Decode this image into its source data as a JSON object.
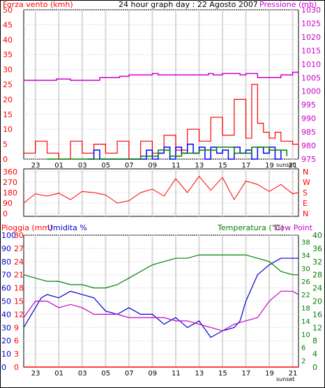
{
  "chart_data": [
    {
      "id": "wind",
      "type": "line",
      "title": "24 hour graph day : 22 Agosto 2007",
      "left_label": "Forza vento (kmh)",
      "right_label": "Pressione (mb)",
      "left_ticks": [
        "0",
        "5",
        "10",
        "15",
        "20",
        "25",
        "30",
        "35",
        "40",
        "45",
        "50"
      ],
      "left_ylim": [
        0,
        50
      ],
      "right_ticks": [
        "975",
        "980",
        "985",
        "990",
        "995",
        "1000",
        "1005",
        "1010",
        "1015",
        "1020",
        "1025",
        "1030"
      ],
      "right_ylim": [
        975,
        1030
      ],
      "x_ticks": [
        "23",
        "01",
        "03",
        "05",
        "07",
        "09",
        "11",
        "13",
        "15",
        "17",
        "19",
        "21"
      ],
      "x_range": [
        22,
        45.5
      ],
      "sunset_label": "sunset",
      "grid": true,
      "colors": {
        "wind": "#ff0000",
        "gust": "#0000ff",
        "green": "#008000",
        "pressure": "#cc00cc",
        "axis_left": "#ff0000",
        "axis_right": "#cc00cc"
      },
      "series": [
        {
          "key": "pressure",
          "x": [
            22.0,
            24.7,
            24.8,
            26.0,
            28.5,
            30.2,
            31.0,
            33.0,
            33.5,
            35.0,
            37.8,
            38.2,
            39.0,
            40.5,
            41.0,
            42.0,
            42.5,
            44.0,
            45.0,
            45.5
          ],
          "y": [
            1004,
            1004,
            1004.5,
            1004,
            1005,
            1005.5,
            1006,
            1006.5,
            1006,
            1006,
            1006.5,
            1006,
            1006.5,
            1006,
            1006.5,
            1005,
            1005,
            1006,
            1007,
            1007
          ]
        },
        {
          "key": "wind",
          "x": [
            22,
            23,
            24,
            25,
            26,
            27,
            28,
            29,
            30,
            31,
            32,
            33,
            34,
            35,
            36,
            37,
            38,
            39,
            40,
            41,
            41.5,
            42,
            42.5,
            43,
            43.5,
            44,
            45,
            45.5
          ],
          "y": [
            2,
            6,
            2,
            0,
            6,
            2,
            5,
            2,
            6,
            0,
            6,
            2,
            8,
            3,
            10,
            6,
            14,
            8,
            20,
            7,
            25,
            12,
            9,
            7,
            9,
            6,
            5,
            6
          ]
        },
        {
          "key": "gust",
          "x": [
            27.5,
            28,
            28.5,
            32,
            32.5,
            33,
            33.5,
            34,
            34.5,
            35,
            35.5,
            36,
            36.5,
            37,
            37.5,
            38,
            38.5,
            39,
            39.5,
            40,
            40.5,
            41,
            41.5,
            42,
            42.5,
            43,
            43.5,
            44
          ],
          "y": [
            0,
            3,
            0,
            0,
            3,
            0,
            2,
            4,
            0,
            4,
            2,
            5,
            2,
            4,
            0,
            4,
            2,
            3,
            0,
            4,
            2,
            3,
            0,
            4,
            2,
            4,
            0,
            3
          ]
        },
        {
          "key": "green",
          "x": [
            24,
            30,
            32,
            33.5,
            34.5,
            35.5,
            37,
            38.5,
            40,
            41.5,
            43,
            44.5
          ],
          "y": [
            0,
            0,
            1,
            3,
            1,
            2,
            3,
            4,
            2,
            4,
            3,
            1
          ]
        }
      ]
    },
    {
      "id": "direction",
      "type": "line",
      "left_ticks": [
        "0",
        "90",
        "180",
        "270",
        "360"
      ],
      "left_ylim": [
        0,
        360
      ],
      "right_ticks": [
        "N",
        "E",
        "S",
        "W",
        "N"
      ],
      "x_ticks": [
        "23",
        "01",
        "03",
        "05",
        "07",
        "09",
        "11",
        "13",
        "15",
        "17",
        "19",
        "21"
      ],
      "series": [
        {
          "key": "direction",
          "x": [
            22,
            23,
            24,
            25,
            26,
            27,
            28,
            29,
            30,
            31,
            32,
            33,
            34,
            35,
            36,
            37,
            38,
            39,
            40,
            41,
            42,
            43,
            44,
            45,
            45.5
          ],
          "y": [
            90,
            170,
            150,
            175,
            120,
            190,
            180,
            160,
            90,
            110,
            180,
            210,
            150,
            300,
            180,
            320,
            200,
            310,
            120,
            280,
            250,
            190,
            250,
            170,
            180
          ]
        }
      ]
    },
    {
      "id": "temp",
      "type": "line",
      "labels": [
        "Pioggia (mm)",
        "Umidita %",
        "Temperatura (°C)",
        "Dew Point"
      ],
      "rain_ticks": [
        "0",
        "3",
        "6",
        "9",
        "12",
        "15",
        "18",
        "21",
        "24",
        "27",
        "30"
      ],
      "humidity_ticks": [
        "0",
        "10",
        "20",
        "30",
        "40",
        "50",
        "60",
        "70",
        "80",
        "90",
        "100"
      ],
      "temp_ticks": [
        "0",
        "4",
        "8",
        "12",
        "16",
        "20",
        "24",
        "28",
        "32",
        "36",
        "40"
      ],
      "temp_ticks_right": [
        "0",
        "2",
        "4",
        "6",
        "8",
        "10",
        "12",
        "14",
        "16",
        "18",
        "20",
        "22",
        "24",
        "26",
        "28",
        "30",
        "32",
        "34",
        "36",
        "38",
        "40"
      ],
      "x_ticks": [
        "23",
        "01",
        "03",
        "05",
        "07",
        "09",
        "11",
        "13",
        "15",
        "17",
        "19",
        "21"
      ],
      "sunset_label": "sunset",
      "series": [
        {
          "key": "humidity",
          "x": [
            22,
            23,
            23.5,
            24,
            25,
            26,
            27,
            28,
            29,
            30,
            31,
            32,
            33,
            34,
            35,
            36,
            37,
            38,
            39,
            40,
            40.5,
            41,
            42,
            43,
            44,
            45,
            45.5
          ],
          "y": [
            12,
            18,
            21,
            22,
            21,
            23,
            22,
            21,
            17,
            16,
            18,
            16,
            16,
            13,
            15,
            12,
            14,
            9,
            11,
            12,
            14,
            20,
            28,
            31,
            33,
            33,
            33
          ]
        },
        {
          "key": "temperature",
          "x": [
            22,
            23,
            24,
            25,
            26,
            27,
            28,
            29,
            30,
            31,
            32,
            33,
            34,
            35,
            36,
            37,
            38,
            39,
            40,
            41,
            42,
            43,
            44,
            45,
            45.5
          ],
          "y": [
            28,
            27,
            26,
            26,
            25,
            25,
            24,
            24,
            25,
            27,
            29,
            31,
            32,
            33,
            33,
            34,
            34,
            34,
            34,
            34,
            33,
            32,
            29,
            28,
            28
          ]
        },
        {
          "key": "dewpoint",
          "x": [
            22,
            23,
            24,
            25,
            26,
            27,
            28,
            29,
            30,
            31,
            32,
            33,
            34,
            35,
            36,
            37,
            38,
            39,
            40,
            41,
            42,
            43,
            44,
            45,
            45.5
          ],
          "y": [
            15,
            20,
            20,
            18,
            19,
            18,
            16,
            16,
            16,
            15,
            15,
            15,
            15,
            14,
            14,
            13,
            12,
            11,
            13,
            14,
            15,
            20,
            23,
            23,
            22
          ]
        },
        {
          "key": "rain",
          "x": [
            22,
            45.5
          ],
          "y": [
            0,
            0
          ]
        }
      ]
    }
  ]
}
